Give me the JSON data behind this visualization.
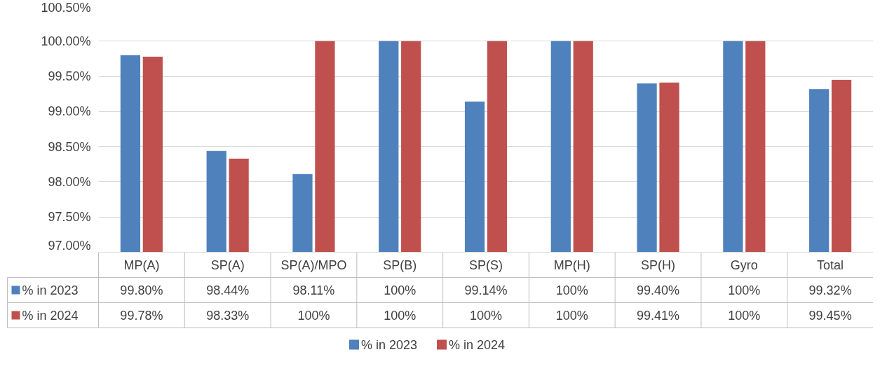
{
  "chart_data": {
    "type": "bar",
    "categories": [
      "MP(A)",
      "SP(A)",
      "SP(A)/MPO",
      "SP(B)",
      "SP(S)",
      "MP(H)",
      "SP(H)",
      "Gyro",
      "Total"
    ],
    "series": [
      {
        "name": "% in 2023",
        "color": "#4f81bd",
        "values": [
          99.8,
          98.44,
          98.11,
          100,
          99.14,
          100,
          99.4,
          100,
          99.32
        ],
        "value_labels": [
          "99.80%",
          "98.44%",
          "98.11%",
          "100%",
          "99.14%",
          "100%",
          "99.40%",
          "100%",
          "99.32%"
        ]
      },
      {
        "name": "% in 2024",
        "color": "#c0504d",
        "values": [
          99.78,
          98.33,
          100,
          100,
          100,
          100,
          99.41,
          100,
          99.45
        ],
        "value_labels": [
          "99.78%",
          "98.33%",
          "100%",
          "100%",
          "100%",
          "100%",
          "99.41%",
          "100%",
          "99.45%"
        ]
      }
    ],
    "ylim": [
      97,
      100.5
    ],
    "yticks": [
      {
        "value": 97,
        "label": "97.00%"
      },
      {
        "value": 97.5,
        "label": "97.50%"
      },
      {
        "value": 98,
        "label": "98.00%"
      },
      {
        "value": 98.5,
        "label": "98.50%"
      },
      {
        "value": 99,
        "label": "99.00%"
      },
      {
        "value": 99.5,
        "label": "99.50%"
      },
      {
        "value": 100,
        "label": "100.00%"
      },
      {
        "value": 100.5,
        "label": "100.50%"
      }
    ],
    "grid": "y",
    "legend": "bottom"
  }
}
